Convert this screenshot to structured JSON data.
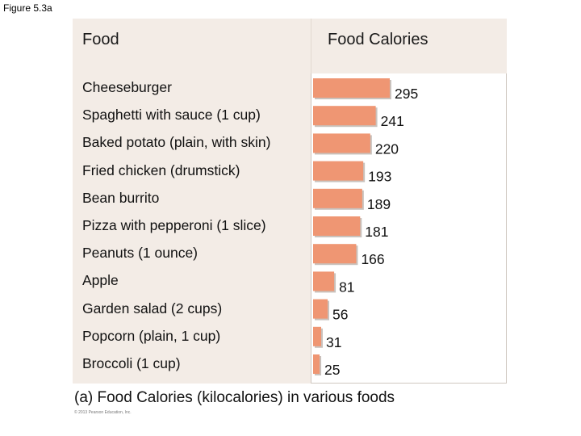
{
  "figure_label": "Figure 5.3a",
  "chart_data": {
    "type": "bar",
    "orientation": "horizontal",
    "title": "(a) Food Calories (kilocalories) in various foods",
    "category_header": "Food",
    "value_header": "Food Calories",
    "categories": [
      "Cheeseburger",
      "Spaghetti with sauce (1 cup)",
      "Baked potato (plain, with skin)",
      "Fried chicken (drumstick)",
      "Bean burrito",
      "Pizza with pepperoni (1 slice)",
      "Peanuts (1 ounce)",
      "Apple",
      "Garden salad (2 cups)",
      "Popcorn (plain, 1 cup)",
      "Broccoli (1 cup)"
    ],
    "values": [
      295,
      241,
      220,
      193,
      189,
      181,
      166,
      81,
      56,
      31,
      25
    ],
    "unit": "kilocalories",
    "bar_color": "#ef9673",
    "data_labels": true,
    "grid": false
  },
  "copyright": "© 2013 Pearson Education, Inc."
}
